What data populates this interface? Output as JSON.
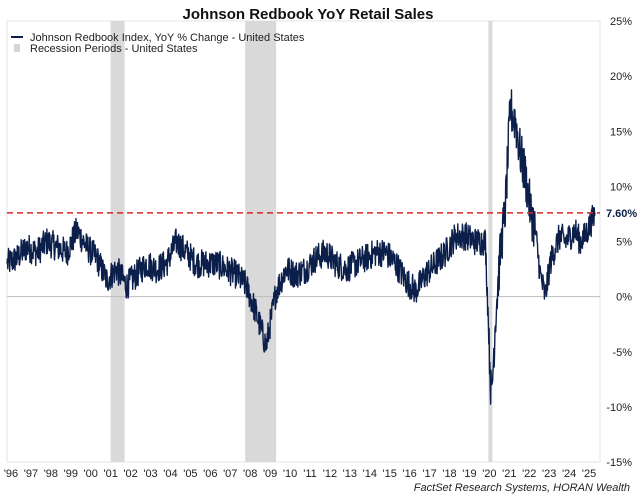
{
  "chart_data": {
    "type": "line",
    "title": "Johnson Redbook YoY Retail Sales",
    "xlabel": "",
    "ylabel": "",
    "ylim": [
      -15,
      25
    ],
    "xlim": [
      1996.0,
      2025.75
    ],
    "y_ticks": [
      25,
      20,
      15,
      10,
      5,
      0,
      -5,
      -10,
      -15
    ],
    "y_tick_labels": [
      "25%",
      "20%",
      "15%",
      "10%",
      "5%",
      "0%",
      "-5%",
      "-10%",
      "-15%"
    ],
    "x_ticks": [
      1996,
      1997,
      1998,
      1999,
      2000,
      2001,
      2002,
      2003,
      2004,
      2005,
      2006,
      2007,
      2008,
      2009,
      2010,
      2011,
      2012,
      2013,
      2014,
      2015,
      2016,
      2017,
      2018,
      2019,
      2020,
      2021,
      2022,
      2023,
      2024,
      2025
    ],
    "x_tick_labels": [
      "'96",
      "'97",
      "'98",
      "'99",
      "'00",
      "'01",
      "'02",
      "'03",
      "'04",
      "'05",
      "'06",
      "'07",
      "'08",
      "'09",
      "'10",
      "'11",
      "'12",
      "'13",
      "'14",
      "'15",
      "'16",
      "'17",
      "'18",
      "'19",
      "'20",
      "'21",
      "'22",
      "'23",
      "'24",
      "'25"
    ],
    "legend": [
      "Johnson Redbook Index, YoY % Change - United States",
      "Recession Periods - United States"
    ],
    "legend_position": "top-left",
    "recessions": [
      [
        2001.2,
        2001.9
      ],
      [
        2007.95,
        2009.5
      ],
      [
        2020.15,
        2020.35
      ]
    ],
    "reference_line": {
      "value": 7.6,
      "label": "7.60%",
      "color": "#d62728"
    },
    "series": [
      {
        "name": "Johnson Redbook Index, YoY % Change - United States",
        "color": "#0b1f4a",
        "x": [
          1996.0,
          1996.5,
          1997.0,
          1997.5,
          1998.0,
          1998.5,
          1999.0,
          1999.5,
          2000.0,
          2000.5,
          2001.0,
          2001.5,
          2002.0,
          2002.5,
          2003.0,
          2003.5,
          2004.0,
          2004.5,
          2005.0,
          2005.5,
          2006.0,
          2006.5,
          2007.0,
          2007.5,
          2008.0,
          2008.5,
          2009.0,
          2009.5,
          2010.0,
          2010.5,
          2011.0,
          2011.5,
          2012.0,
          2012.5,
          2013.0,
          2013.5,
          2014.0,
          2014.5,
          2015.0,
          2015.5,
          2016.0,
          2016.5,
          2017.0,
          2017.5,
          2018.0,
          2018.5,
          2019.0,
          2019.5,
          2020.0,
          2020.3,
          2020.5,
          2020.75,
          2021.0,
          2021.25,
          2021.5,
          2021.75,
          2022.0,
          2022.25,
          2022.5,
          2022.75,
          2023.0,
          2023.25,
          2023.5,
          2023.75,
          2024.0,
          2024.25,
          2024.5,
          2024.75,
          2025.0,
          2025.25,
          2025.5
        ],
        "values": [
          3.0,
          3.5,
          4.5,
          4.0,
          5.0,
          4.5,
          4.0,
          6.0,
          4.5,
          3.5,
          1.5,
          2.5,
          1.0,
          2.0,
          3.0,
          2.5,
          3.0,
          5.0,
          4.0,
          3.0,
          3.0,
          3.0,
          2.5,
          2.0,
          1.0,
          -1.5,
          -4.5,
          0.5,
          2.5,
          2.0,
          2.5,
          3.5,
          4.0,
          3.0,
          2.5,
          3.0,
          3.5,
          4.0,
          4.0,
          3.0,
          1.5,
          0.5,
          2.0,
          3.0,
          4.0,
          5.5,
          5.5,
          5.0,
          5.0,
          -9.5,
          -2.0,
          4.0,
          8.0,
          17.0,
          16.0,
          13.0,
          11.0,
          8.0,
          6.0,
          2.0,
          0.0,
          3.0,
          4.5,
          5.5,
          5.0,
          5.5,
          6.0,
          5.0,
          5.5,
          6.5,
          7.6
        ]
      }
    ],
    "source": "FactSet Research Systems, HORAN Wealth"
  }
}
